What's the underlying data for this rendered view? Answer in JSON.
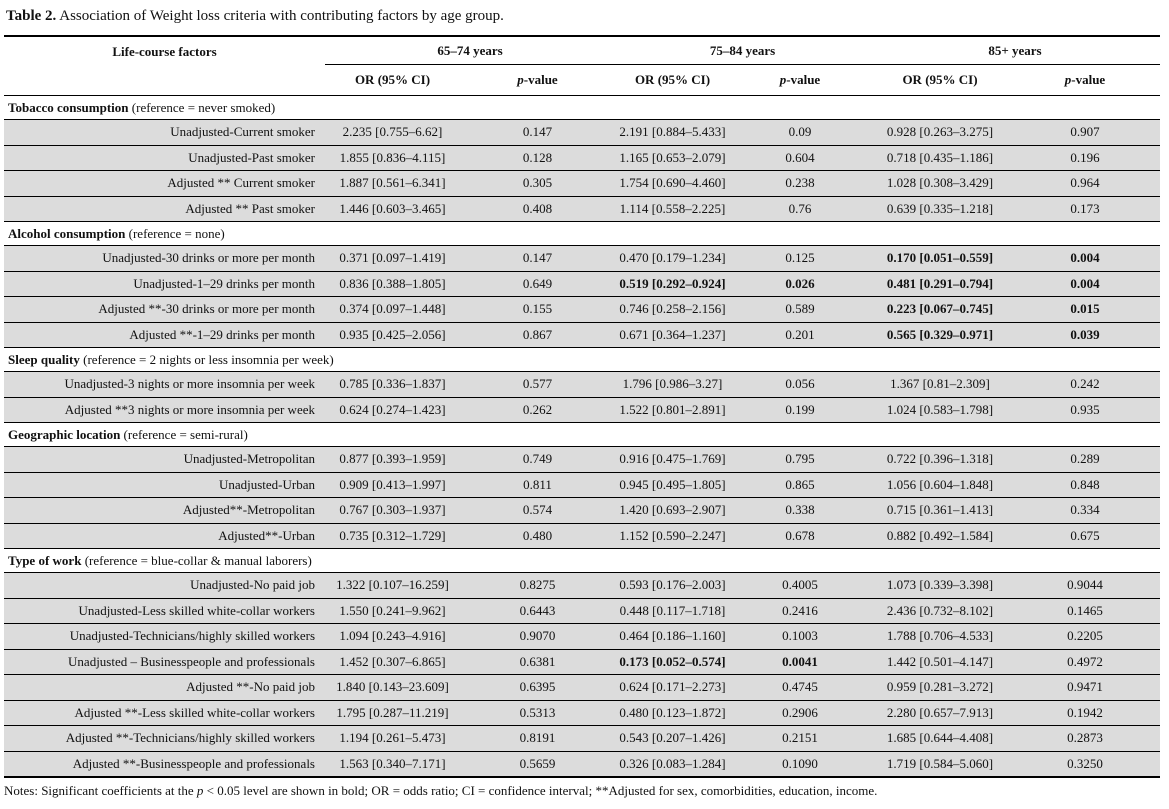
{
  "title": {
    "label": "Table 2.",
    "text": "Association of Weight loss criteria with contributing factors by age group."
  },
  "header": {
    "factor": "Life-course factors",
    "groups": [
      "65–74 years",
      "75–84 years",
      "85+ years"
    ],
    "or_label": "OR (95% CI)",
    "p_italic": "p",
    "p_suffix": "-value"
  },
  "sections": [
    {
      "name": "Tobacco consumption",
      "ref": "(reference = never smoked)",
      "rows": [
        {
          "label": "Unadjusted-Current smoker",
          "values": [
            "2.235 [0.755–6.62]",
            "0.147",
            "2.191 [0.884–5.433]",
            "0.09",
            "0.928 [0.263–3.275]",
            "0.907"
          ],
          "bold": []
        },
        {
          "label": "Unadjusted-Past smoker",
          "values": [
            "1.855 [0.836–4.115]",
            "0.128",
            "1.165 [0.653–2.079]",
            "0.604",
            "0.718 [0.435–1.186]",
            "0.196"
          ],
          "bold": []
        },
        {
          "label": "Adjusted ** Current smoker",
          "values": [
            "1.887 [0.561–6.341]",
            "0.305",
            "1.754 [0.690–4.460]",
            "0.238",
            "1.028 [0.308–3.429]",
            "0.964"
          ],
          "bold": []
        },
        {
          "label": "Adjusted ** Past smoker",
          "values": [
            "1.446 [0.603–3.465]",
            "0.408",
            "1.114 [0.558–2.225]",
            "0.76",
            "0.639 [0.335–1.218]",
            "0.173"
          ],
          "bold": []
        }
      ]
    },
    {
      "name": "Alcohol consumption",
      "ref": "(reference = none)",
      "rows": [
        {
          "label": "Unadjusted-30 drinks or more per month",
          "values": [
            "0.371 [0.097–1.419]",
            "0.147",
            "0.470 [0.179–1.234]",
            "0.125",
            "0.170 [0.051–0.559]",
            "0.004"
          ],
          "bold": [
            4,
            5
          ]
        },
        {
          "label": "Unadjusted-1–29 drinks per month",
          "values": [
            "0.836 [0.388–1.805]",
            "0.649",
            "0.519 [0.292–0.924]",
            "0.026",
            "0.481 [0.291–0.794]",
            "0.004"
          ],
          "bold": [
            2,
            3,
            4,
            5
          ]
        },
        {
          "label": "Adjusted **-30 drinks or more per month",
          "values": [
            "0.374 [0.097–1.448]",
            "0.155",
            "0.746 [0.258–2.156]",
            "0.589",
            "0.223 [0.067–0.745]",
            "0.015"
          ],
          "bold": [
            4,
            5
          ]
        },
        {
          "label": "Adjusted **-1–29 drinks per month",
          "values": [
            "0.935 [0.425–2.056]",
            "0.867",
            "0.671 [0.364–1.237]",
            "0.201",
            "0.565 [0.329–0.971]",
            "0.039"
          ],
          "bold": [
            4,
            5
          ]
        }
      ]
    },
    {
      "name": "Sleep quality",
      "ref": "(reference = 2 nights or less insomnia per week)",
      "rows": [
        {
          "label": "Unadjusted-3 nights or more insomnia per week",
          "values": [
            "0.785 [0.336–1.837]",
            "0.577",
            "1.796 [0.986–3.27]",
            "0.056",
            "1.367 [0.81–2.309]",
            "0.242"
          ],
          "bold": []
        },
        {
          "label": "Adjusted **3 nights or more insomnia per week",
          "values": [
            "0.624 [0.274–1.423]",
            "0.262",
            "1.522 [0.801–2.891]",
            "0.199",
            "1.024 [0.583–1.798]",
            "0.935"
          ],
          "bold": []
        }
      ]
    },
    {
      "name": "Geographic location",
      "ref": "(reference = semi-rural)",
      "rows": [
        {
          "label": "Unadjusted-Metropolitan",
          "values": [
            "0.877 [0.393–1.959]",
            "0.749",
            "0.916 [0.475–1.769]",
            "0.795",
            "0.722 [0.396–1.318]",
            "0.289"
          ],
          "bold": []
        },
        {
          "label": "Unadjusted-Urban",
          "values": [
            "0.909 [0.413–1.997]",
            "0.811",
            "0.945 [0.495–1.805]",
            "0.865",
            "1.056 [0.604–1.848]",
            "0.848"
          ],
          "bold": []
        },
        {
          "label": "Adjusted**-Metropolitan",
          "values": [
            "0.767 [0.303–1.937]",
            "0.574",
            "1.420 [0.693–2.907]",
            "0.338",
            "0.715 [0.361–1.413]",
            "0.334"
          ],
          "bold": []
        },
        {
          "label": "Adjusted**-Urban",
          "values": [
            "0.735 [0.312–1.729]",
            "0.480",
            "1.152 [0.590–2.247]",
            "0.678",
            "0.882 [0.492–1.584]",
            "0.675"
          ],
          "bold": []
        }
      ]
    },
    {
      "name": "Type of work",
      "ref": "(reference = blue-collar & manual laborers)",
      "rows": [
        {
          "label": "Unadjusted-No paid job",
          "values": [
            "1.322 [0.107–16.259]",
            "0.8275",
            "0.593 [0.176–2.003]",
            "0.4005",
            "1.073 [0.339–3.398]",
            "0.9044"
          ],
          "bold": []
        },
        {
          "label": "Unadjusted-Less skilled white-collar workers",
          "values": [
            "1.550 [0.241–9.962]",
            "0.6443",
            "0.448 [0.117–1.718]",
            "0.2416",
            "2.436 [0.732–8.102]",
            "0.1465"
          ],
          "bold": []
        },
        {
          "label": "Unadjusted-Technicians/highly skilled workers",
          "values": [
            "1.094 [0.243–4.916]",
            "0.9070",
            "0.464 [0.186–1.160]",
            "0.1003",
            "1.788 [0.706–4.533]",
            "0.2205"
          ],
          "bold": []
        },
        {
          "label": "Unadjusted – Businesspeople and professionals",
          "values": [
            "1.452 [0.307–6.865]",
            "0.6381",
            "0.173 [0.052–0.574]",
            "0.0041",
            "1.442 [0.501–4.147]",
            "0.4972"
          ],
          "bold": [
            2,
            3
          ]
        },
        {
          "label": "Adjusted **-No paid job",
          "values": [
            "1.840 [0.143–23.609]",
            "0.6395",
            "0.624 [0.171–2.273]",
            "0.4745",
            "0.959 [0.281–3.272]",
            "0.9471"
          ],
          "bold": []
        },
        {
          "label": "Adjusted **-Less skilled white-collar workers",
          "values": [
            "1.795 [0.287–11.219]",
            "0.5313",
            "0.480 [0.123–1.872]",
            "0.2906",
            "2.280 [0.657–7.913]",
            "0.1942"
          ],
          "bold": []
        },
        {
          "label": "Adjusted **-Technicians/highly skilled workers",
          "values": [
            "1.194 [0.261–5.473]",
            "0.8191",
            "0.543 [0.207–1.426]",
            "0.2151",
            "1.685 [0.644–4.408]",
            "0.2873"
          ],
          "bold": []
        },
        {
          "label": "Adjusted **-Businesspeople and professionals",
          "values": [
            "1.563 [0.340–7.171]",
            "0.5659",
            "0.326 [0.083–1.284]",
            "0.1090",
            "1.719 [0.584–5.060]",
            "0.3250"
          ],
          "bold": []
        }
      ]
    }
  ],
  "notes": {
    "before": "Notes: Significant coefficients at the ",
    "p": "p",
    "after": " < 0.05 level are shown in bold; OR = odds ratio; CI = confidence interval; **Adjusted for sex, comorbidities, education, income."
  },
  "colors": {
    "row_bg": "#dcdcdc",
    "rule": "#000000"
  }
}
